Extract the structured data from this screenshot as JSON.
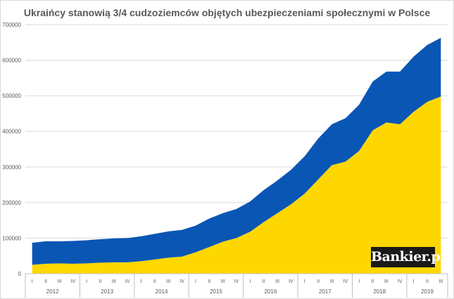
{
  "chart_data": {
    "type": "area",
    "stacked": true,
    "title": "Ukraińcy stanowią 3/4 cudzoziemców objętych ubezpieczeniami społecznymi w Polsce",
    "xlabel": "",
    "ylabel": "",
    "ylim": [
      0,
      700000
    ],
    "yticks": [
      0,
      100000,
      200000,
      300000,
      400000,
      500000,
      600000,
      700000
    ],
    "ytick_labels": [
      "0",
      "100000",
      "200000",
      "300000",
      "400000",
      "500000",
      "600000",
      "700000"
    ],
    "grid": true,
    "legend": "none",
    "quarters": [
      "I",
      "II",
      "III",
      "IV",
      "I",
      "II",
      "III",
      "IV",
      "I",
      "II",
      "III",
      "IV",
      "I",
      "II",
      "III",
      "IV",
      "I",
      "II",
      "III",
      "IV",
      "I",
      "II",
      "III",
      "IV",
      "I",
      "II",
      "III",
      "IV",
      "I",
      "II",
      "III"
    ],
    "years": [
      {
        "label": "2012",
        "quarters": 4
      },
      {
        "label": "2013",
        "quarters": 4
      },
      {
        "label": "2014",
        "quarters": 4
      },
      {
        "label": "2015",
        "quarters": 4
      },
      {
        "label": "2016",
        "quarters": 4
      },
      {
        "label": "2017",
        "quarters": 4
      },
      {
        "label": "2018",
        "quarters": 4
      },
      {
        "label": "2019",
        "quarters": 3
      }
    ],
    "series": [
      {
        "color": "#ffd700",
        "values": [
          25000,
          28000,
          29000,
          28000,
          29000,
          31000,
          32000,
          32000,
          35000,
          40000,
          45000,
          48000,
          60000,
          75000,
          90000,
          100000,
          118000,
          145000,
          170000,
          195000,
          225000,
          265000,
          305000,
          315000,
          345000,
          403000,
          425000,
          420000,
          455000,
          483000,
          498000
        ]
      },
      {
        "color": "#0a56b5",
        "values": [
          62000,
          63000,
          62000,
          64000,
          65000,
          66000,
          67000,
          68000,
          70000,
          72000,
          74000,
          75000,
          75000,
          80000,
          80000,
          82000,
          85000,
          90000,
          92000,
          97000,
          105000,
          115000,
          115000,
          122000,
          130000,
          137000,
          143000,
          148000,
          155000,
          160000,
          165000
        ]
      }
    ]
  },
  "logo_text": "Bankier.pl"
}
